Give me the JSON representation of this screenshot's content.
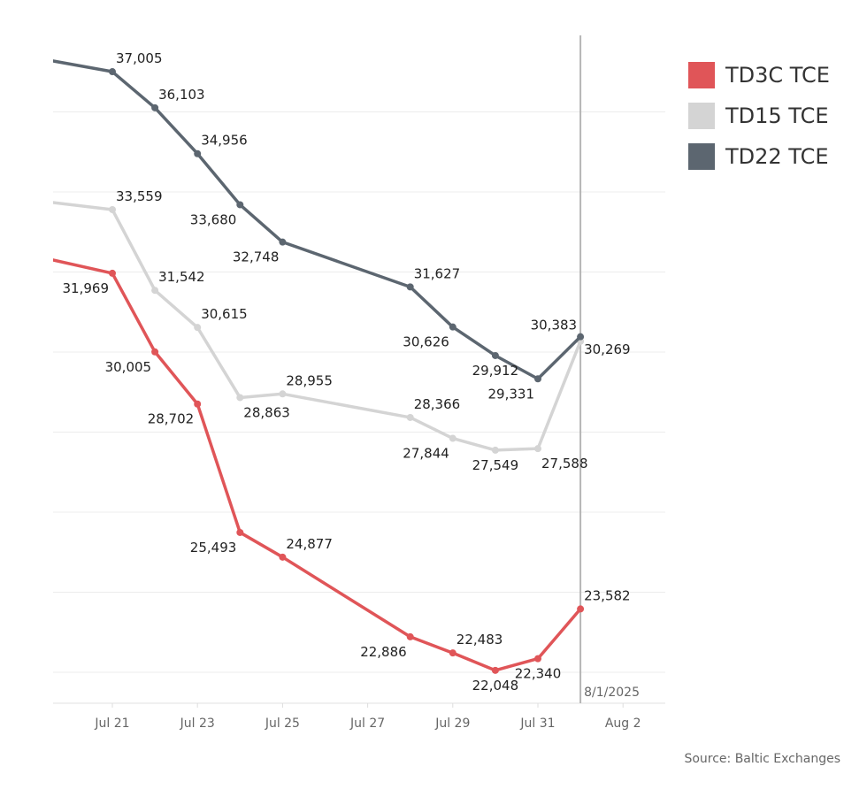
{
  "chart_data": {
    "type": "line",
    "x": [
      "2025-07-18",
      "2025-07-21",
      "2025-07-22",
      "2025-07-23",
      "2025-07-24",
      "2025-07-25",
      "2025-07-28",
      "2025-07-29",
      "2025-07-30",
      "2025-07-31",
      "2025-08-01"
    ],
    "series": [
      {
        "name": "TD3C TCE",
        "color": "#e05558",
        "values": [
          32680,
          31969,
          30005,
          28702,
          25493,
          24877,
          22886,
          22483,
          22048,
          22340,
          23582
        ]
      },
      {
        "name": "TD15 TCE",
        "color": "#d4d4d4",
        "values": [
          33940,
          33559,
          31542,
          30615,
          28863,
          28955,
          28366,
          27844,
          27549,
          27588,
          30269
        ]
      },
      {
        "name": "TD22 TCE",
        "color": "#5c6670",
        "values": [
          37580,
          37005,
          36103,
          34956,
          33680,
          32748,
          31627,
          30626,
          29912,
          29331,
          30383
        ]
      }
    ],
    "data_labels": {
      "TD3C TCE": [
        "",
        "31,969",
        "30,005",
        "28,702",
        "25,493",
        "24,877",
        "22,886",
        "22,483",
        "22,048",
        "22,340",
        "23,582"
      ],
      "TD15 TCE": [
        "",
        "33,559",
        "31,542",
        "30,615",
        "28,863",
        "28,955",
        "28,366",
        "27,844",
        "27,549",
        "27,588",
        "30,269"
      ],
      "TD22 TCE": [
        "",
        "37,005",
        "36,103",
        "34,956",
        "33,680",
        "32,748",
        "31,627",
        "30,626",
        "29,912",
        "29,331",
        "30,383"
      ]
    },
    "x_ticks": [
      "Jul 21",
      "Jul 23",
      "Jul 25",
      "Jul 27",
      "Jul 29",
      "Jul 31",
      "Aug 2"
    ],
    "xlim": [
      "2025-07-19",
      "2025-08-03"
    ],
    "ylim": [
      21200,
      38200
    ],
    "grid": true,
    "reference_line": {
      "x": "2025-08-01",
      "label": "8/1/2025",
      "color": "#b5b5b5"
    },
    "legend_position": "right",
    "source": "Source: Baltic Exchanges"
  }
}
